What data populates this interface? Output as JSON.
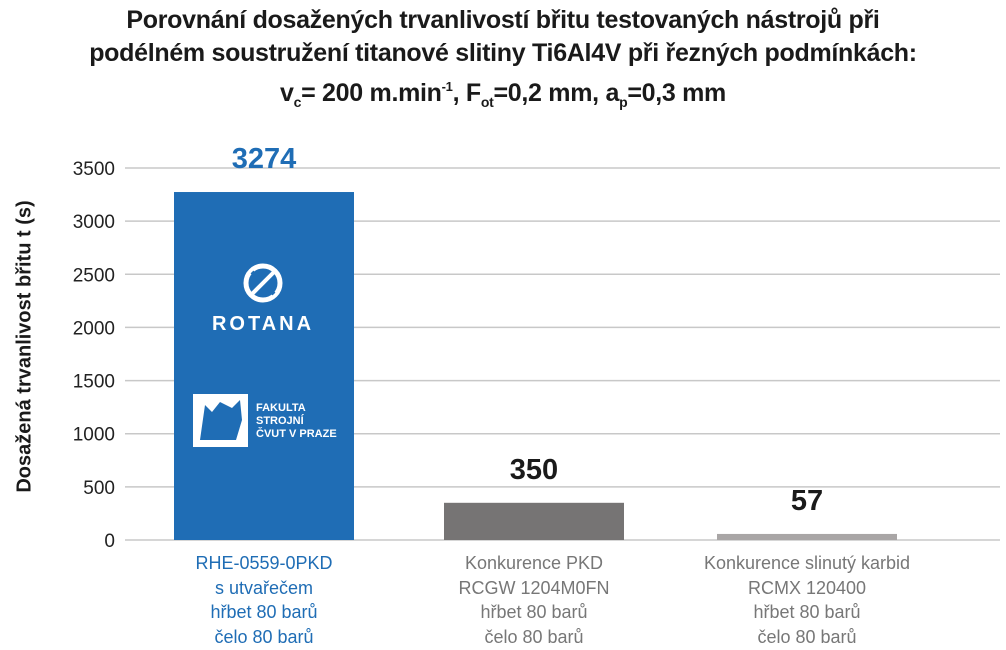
{
  "chart_data": {
    "type": "bar",
    "title": {
      "line1": "Porovnání dosažených trvanlivostí břitu testovaných nástrojů při",
      "line2": "podélném soustružení titanové slitiny Ti6Al4V při řezných podmínkách:",
      "line3": {
        "v": "v",
        "v_sub": "c",
        "v_val": "= 200 m.min",
        "v_sup": "-1",
        "f_sep": ", F",
        "f_sub": "ot",
        "f_val": "=0,2 mm, a",
        "a_sub": "p",
        "a_val": "=0,3 mm"
      }
    },
    "ylabel": "Dosažená trvanlivost břitu t (s)",
    "xlabel": "",
    "ylim": [
      0,
      3500
    ],
    "yticks": [
      "0",
      "500",
      "1000",
      "1500",
      "2000",
      "2500",
      "3000",
      "3500"
    ],
    "grid": true,
    "categories": [
      [
        "RHE-0559-0PKD",
        "s utvařečem",
        "hřbet 80 barů",
        "čelo 80 barů"
      ],
      [
        "Konkurence PKD",
        "RCGW 1204M0FN",
        "hřbet 80 barů",
        "čelo 80 barů"
      ],
      [
        "Konkurence  slinutý karbid",
        "RCMX 120400",
        "hřbet 80 barů",
        "čelo 80 barů"
      ]
    ],
    "values": [
      3274,
      350,
      57
    ],
    "value_labels": [
      "3274",
      "350",
      "57"
    ],
    "colors": [
      "#1f6db5",
      "#767474",
      "#a9a6a6"
    ],
    "label_colors": [
      "#1f6db5",
      "#1a1a1a",
      "#1a1a1a"
    ],
    "logos": {
      "brand": "ROTANA",
      "faculty": [
        "FAKULTA",
        "STROJNÍ",
        "ČVUT V PRAZE"
      ]
    }
  }
}
